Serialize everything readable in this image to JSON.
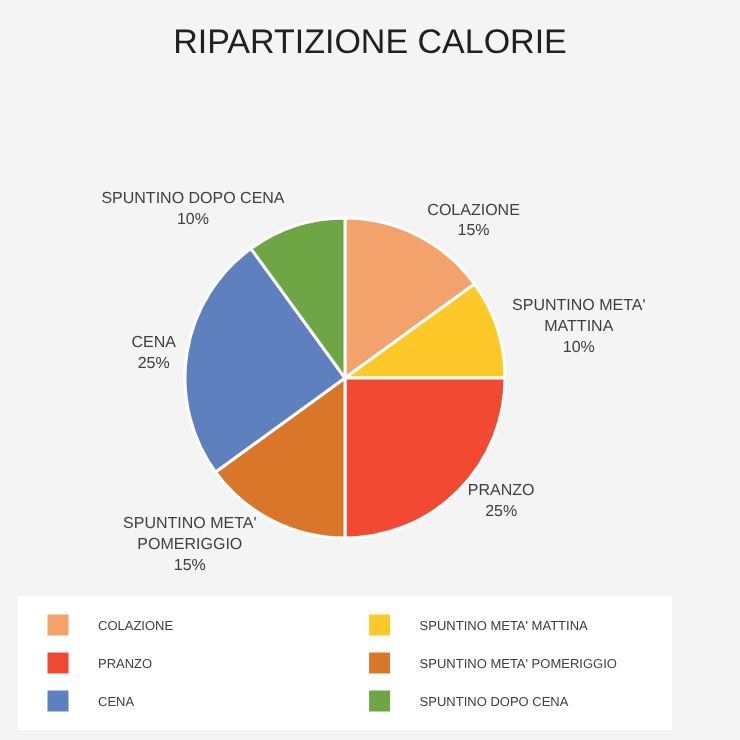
{
  "chart_data": {
    "type": "pie",
    "title": "RIPARTIZIONE CALORIE",
    "categories": [
      "COLAZIONE",
      "SPUNTINO META' MATTINA",
      "PRANZO",
      "SPUNTINO META' POMERIGGIO",
      "CENA",
      "SPUNTINO DOPO CENA"
    ],
    "values": [
      15,
      10,
      25,
      15,
      25,
      10
    ],
    "colors": [
      "#f2a26a",
      "#fdc928",
      "#f24a32",
      "#d9762a",
      "#5f80bf",
      "#6ea646"
    ],
    "value_labels": [
      "15%",
      "10%",
      "25%",
      "15%",
      "25%",
      "10%"
    ],
    "legend": "bottom"
  }
}
